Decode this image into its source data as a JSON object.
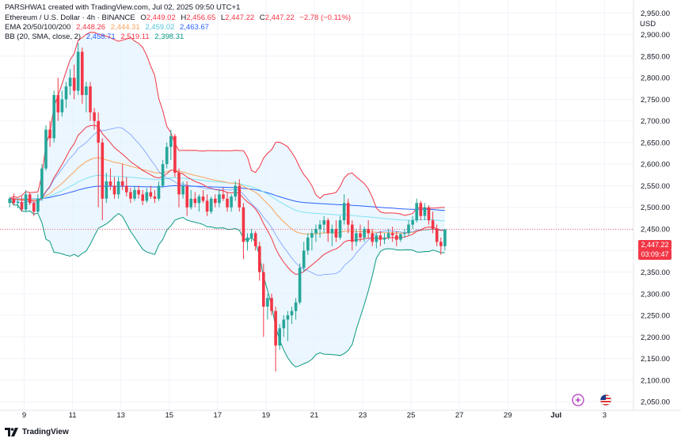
{
  "header": {
    "credit": "PARSHWA1 created with TradingView.com, Jul 02, 2025 09:50 UTC+1",
    "symbol": "Ethereum / U.S. Dollar · 4h · BINANCE",
    "ohlc": {
      "open_label": "O",
      "open": "2,449.02",
      "high_label": "H",
      "high": "2,456.65",
      "low_label": "L",
      "low": "2,447.22",
      "close_label": "C",
      "close": "2,447.22",
      "change": "−2.78 (−0.11%)"
    },
    "ema": {
      "label": "EMA 20/50/100/200",
      "values": [
        "2,448.26",
        "2,444.31",
        "2,459.02",
        "2,463.67"
      ]
    },
    "bb": {
      "label": "BB (20, SMA, close, 2)",
      "values": [
        "2,458.71",
        "2,519.11",
        "2,398.31"
      ]
    }
  },
  "axis": {
    "currency": "USD",
    "price_tag": "2,447.22",
    "countdown": "03:09:47"
  },
  "brand": "TradingView",
  "icons": [
    "sparkle-indicator-icon",
    "us-flag-events-icon",
    "tradingview-logo-icon"
  ],
  "colors": {
    "up": "#26a69a",
    "down": "#f23645",
    "ema20": "#f23645",
    "ema50": "#f7a35c",
    "ema100": "#7ee3f2",
    "ema200": "#2962ff",
    "bb_upper": "#f23645",
    "bb_basis": "#2962ff",
    "bb_lower": "#089981",
    "bb_fill": "#e3f2fd"
  },
  "chart_data": {
    "type": "candlestick",
    "title": "Ethereum / U.S. Dollar · 4h · BINANCE",
    "ylim": [
      2030,
      2980
    ],
    "yticks": [
      2050,
      2100,
      2150,
      2200,
      2250,
      2300,
      2350,
      2400,
      2450,
      2500,
      2550,
      2600,
      2650,
      2700,
      2750,
      2800,
      2850,
      2900,
      2950
    ],
    "ytick_labels": [
      "2,050.00",
      "2,100.00",
      "2,150.00",
      "2,200.00",
      "2,250.00",
      "2,300.00",
      "2,350.00",
      "2,400.00",
      "2,450.00",
      "2,500.00",
      "2,550.00",
      "2,600.00",
      "2,650.00",
      "2,700.00",
      "2,750.00",
      "2,800.00",
      "2,850.00",
      "2,900.00",
      "2,950.00"
    ],
    "x_labels": [
      "9",
      "11",
      "13",
      "15",
      "17",
      "19",
      "21",
      "23",
      "25",
      "27",
      "29",
      "Jul",
      "3"
    ],
    "bar_interval": "4h",
    "start_offset_days": -0.6,
    "x_label_days": [
      0,
      2,
      4,
      6,
      8,
      10,
      12,
      14,
      16,
      18,
      20,
      22,
      24
    ],
    "x_range_days": [
      -1,
      25.2
    ],
    "candles": [
      [
        2510,
        2525,
        2500,
        2520
      ],
      [
        2520,
        2532,
        2505,
        2510
      ],
      [
        2510,
        2520,
        2498,
        2512
      ],
      [
        2512,
        2525,
        2490,
        2495
      ],
      [
        2495,
        2540,
        2490,
        2530
      ],
      [
        2530,
        2535,
        2505,
        2510
      ],
      [
        2510,
        2515,
        2480,
        2490
      ],
      [
        2490,
        2530,
        2485,
        2520
      ],
      [
        2520,
        2600,
        2515,
        2590
      ],
      [
        2590,
        2690,
        2585,
        2680
      ],
      [
        2680,
        2700,
        2640,
        2660
      ],
      [
        2660,
        2770,
        2650,
        2760
      ],
      [
        2760,
        2800,
        2700,
        2720
      ],
      [
        2720,
        2770,
        2710,
        2750
      ],
      [
        2750,
        2790,
        2730,
        2780
      ],
      [
        2780,
        2820,
        2760,
        2800
      ],
      [
        2800,
        2830,
        2750,
        2770
      ],
      [
        2770,
        2880,
        2760,
        2860
      ],
      [
        2860,
        2870,
        2740,
        2760
      ],
      [
        2760,
        2790,
        2720,
        2780
      ],
      [
        2780,
        2790,
        2700,
        2720
      ],
      [
        2720,
        2730,
        2680,
        2700
      ],
      [
        2700,
        2720,
        2500,
        2650
      ],
      [
        2650,
        2660,
        2470,
        2520
      ],
      [
        2520,
        2580,
        2510,
        2560
      ],
      [
        2560,
        2590,
        2540,
        2550
      ],
      [
        2550,
        2570,
        2520,
        2530
      ],
      [
        2530,
        2570,
        2520,
        2560
      ],
      [
        2560,
        2600,
        2540,
        2550
      ],
      [
        2550,
        2570,
        2525,
        2535
      ],
      [
        2535,
        2545,
        2510,
        2520
      ],
      [
        2520,
        2550,
        2515,
        2540
      ],
      [
        2540,
        2550,
        2520,
        2530
      ],
      [
        2530,
        2540,
        2505,
        2515
      ],
      [
        2515,
        2545,
        2510,
        2535
      ],
      [
        2535,
        2550,
        2520,
        2525
      ],
      [
        2525,
        2540,
        2510,
        2520
      ],
      [
        2520,
        2560,
        2515,
        2550
      ],
      [
        2550,
        2610,
        2545,
        2600
      ],
      [
        2600,
        2650,
        2590,
        2640
      ],
      [
        2640,
        2680,
        2610,
        2665
      ],
      [
        2665,
        2670,
        2570,
        2580
      ],
      [
        2580,
        2590,
        2500,
        2530
      ],
      [
        2530,
        2560,
        2520,
        2550
      ],
      [
        2550,
        2560,
        2480,
        2500
      ],
      [
        2500,
        2540,
        2495,
        2520
      ],
      [
        2520,
        2535,
        2500,
        2510
      ],
      [
        2510,
        2530,
        2490,
        2525
      ],
      [
        2525,
        2540,
        2510,
        2515
      ],
      [
        2515,
        2530,
        2480,
        2490
      ],
      [
        2490,
        2525,
        2485,
        2520
      ],
      [
        2520,
        2530,
        2500,
        2510
      ],
      [
        2510,
        2540,
        2500,
        2530
      ],
      [
        2530,
        2545,
        2515,
        2520
      ],
      [
        2520,
        2535,
        2490,
        2500
      ],
      [
        2500,
        2530,
        2490,
        2525
      ],
      [
        2525,
        2560,
        2515,
        2550
      ],
      [
        2550,
        2565,
        2490,
        2500
      ],
      [
        2500,
        2510,
        2380,
        2420
      ],
      [
        2420,
        2440,
        2400,
        2430
      ],
      [
        2430,
        2450,
        2420,
        2440
      ],
      [
        2440,
        2445,
        2400,
        2410
      ],
      [
        2410,
        2420,
        2330,
        2350
      ],
      [
        2350,
        2370,
        2200,
        2270
      ],
      [
        2270,
        2300,
        2240,
        2290
      ],
      [
        2290,
        2300,
        2250,
        2260
      ],
      [
        2260,
        2270,
        2120,
        2180
      ],
      [
        2180,
        2230,
        2170,
        2220
      ],
      [
        2220,
        2250,
        2200,
        2240
      ],
      [
        2240,
        2260,
        2190,
        2250
      ],
      [
        2250,
        2270,
        2230,
        2260
      ],
      [
        2260,
        2290,
        2240,
        2280
      ],
      [
        2280,
        2370,
        2275,
        2360
      ],
      [
        2360,
        2420,
        2350,
        2400
      ],
      [
        2400,
        2440,
        2390,
        2430
      ],
      [
        2430,
        2450,
        2400,
        2440
      ],
      [
        2440,
        2460,
        2420,
        2450
      ],
      [
        2450,
        2470,
        2430,
        2460
      ],
      [
        2460,
        2480,
        2440,
        2470
      ],
      [
        2470,
        2475,
        2420,
        2440
      ],
      [
        2440,
        2460,
        2410,
        2450
      ],
      [
        2450,
        2470,
        2420,
        2430
      ],
      [
        2430,
        2480,
        2425,
        2470
      ],
      [
        2470,
        2530,
        2460,
        2510
      ],
      [
        2510,
        2520,
        2440,
        2460
      ],
      [
        2460,
        2470,
        2400,
        2420
      ],
      [
        2420,
        2450,
        2410,
        2440
      ],
      [
        2440,
        2460,
        2420,
        2430
      ],
      [
        2430,
        2455,
        2420,
        2450
      ],
      [
        2450,
        2470,
        2430,
        2440
      ],
      [
        2440,
        2450,
        2410,
        2420
      ],
      [
        2420,
        2440,
        2405,
        2435
      ],
      [
        2435,
        2445,
        2410,
        2425
      ],
      [
        2425,
        2440,
        2415,
        2430
      ],
      [
        2430,
        2450,
        2425,
        2440
      ],
      [
        2440,
        2455,
        2420,
        2435
      ],
      [
        2435,
        2445,
        2410,
        2425
      ],
      [
        2425,
        2440,
        2420,
        2438
      ],
      [
        2438,
        2450,
        2430,
        2440
      ],
      [
        2440,
        2470,
        2435,
        2460
      ],
      [
        2460,
        2480,
        2450,
        2470
      ],
      [
        2470,
        2520,
        2465,
        2510
      ],
      [
        2510,
        2515,
        2470,
        2480
      ],
      [
        2480,
        2510,
        2470,
        2500
      ],
      [
        2500,
        2505,
        2460,
        2470
      ],
      [
        2470,
        2490,
        2440,
        2450
      ],
      [
        2450,
        2460,
        2410,
        2420
      ],
      [
        2420,
        2430,
        2390,
        2410
      ],
      [
        2410,
        2450,
        2400,
        2449
      ]
    ]
  }
}
